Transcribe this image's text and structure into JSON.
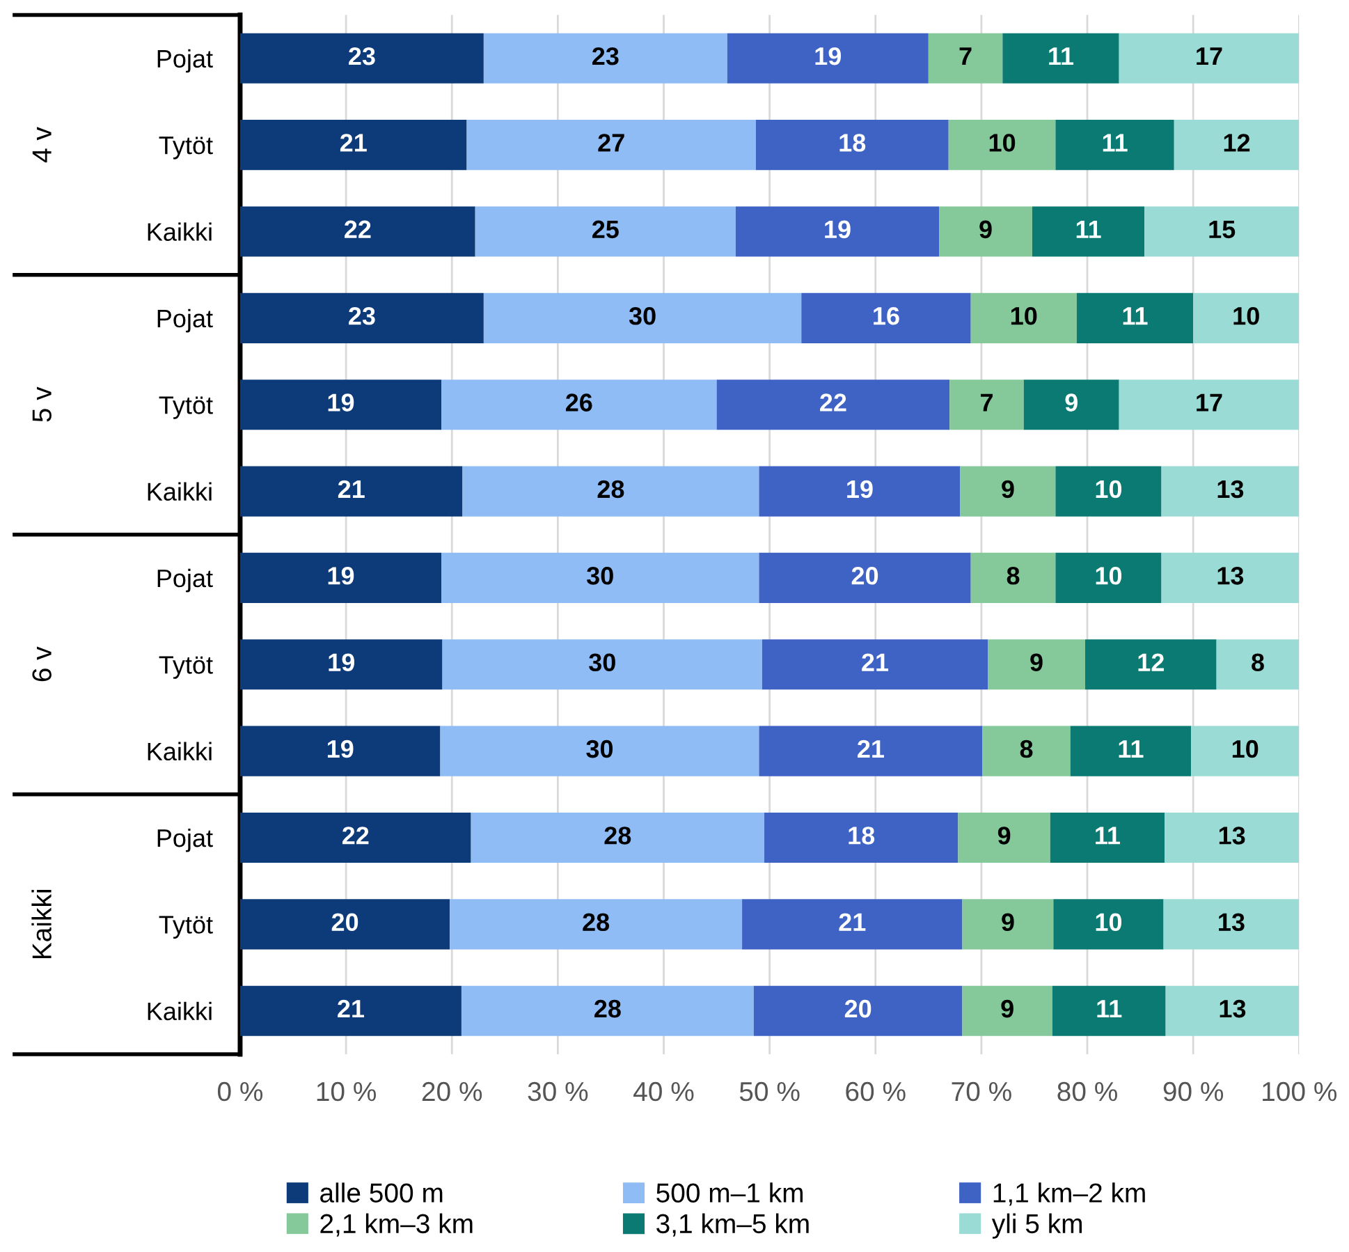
{
  "chart_data": {
    "type": "bar",
    "orientation": "horizontal",
    "stacked": true,
    "grid": "x",
    "legend": "bottom",
    "categories": [
      "Pojat",
      "Tytöt",
      "Kaikki",
      "Pojat",
      "Tytöt",
      "Kaikki",
      "Pojat",
      "Tytöt",
      "Kaikki",
      "Pojat",
      "Tytöt",
      "Kaikki"
    ],
    "annotations": [
      "4 v",
      "5 v",
      "6 v",
      "Kaikki"
    ],
    "xlim": [
      0,
      100
    ],
    "xticks": [
      {
        "value": 0,
        "label": "0 %"
      },
      {
        "value": 10,
        "label": "10 %"
      },
      {
        "value": 20,
        "label": "20 %"
      },
      {
        "value": 30,
        "label": "30 %"
      },
      {
        "value": 40,
        "label": "40 %"
      },
      {
        "value": 50,
        "label": "50 %"
      },
      {
        "value": 60,
        "label": "60 %"
      },
      {
        "value": 70,
        "label": "70 %"
      },
      {
        "value": 80,
        "label": "80 %"
      },
      {
        "value": 90,
        "label": "90 %"
      },
      {
        "value": 100,
        "label": "100 %"
      }
    ],
    "series": [
      {
        "name": "alle 500 m",
        "color": "#0d3a78",
        "values": [
          23,
          21.4,
          22.2,
          23,
          19,
          21,
          19,
          19.1,
          18.9,
          21.8,
          19.8,
          20.9
        ],
        "value_labels": [
          "23",
          "21",
          "22",
          "23",
          "19",
          "21",
          "19",
          "19",
          "19",
          "22",
          "20",
          "21"
        ]
      },
      {
        "name": "500 m–1 km",
        "color": "#8fbcf5",
        "values": [
          23,
          27.3,
          24.6,
          30,
          26,
          28,
          30,
          30.2,
          30.1,
          27.7,
          27.6,
          27.6
        ],
        "value_labels": [
          "23",
          "27",
          "25",
          "30",
          "26",
          "28",
          "30",
          "30",
          "30",
          "28",
          "28",
          "28"
        ]
      },
      {
        "name": "1,1 km–2 km",
        "color": "#3f63c4",
        "values": [
          19,
          18.2,
          19.2,
          16,
          22,
          19,
          20,
          21.3,
          21.1,
          18.3,
          20.8,
          19.7
        ],
        "value_labels": [
          "19",
          "18",
          "19",
          "16",
          "22",
          "19",
          "20",
          "21",
          "21",
          "18",
          "21",
          "20"
        ]
      },
      {
        "name": "2,1 km–3 km",
        "color": "#85c89a",
        "values": [
          7,
          10.1,
          8.8,
          10,
          7,
          9,
          8,
          9.2,
          8.3,
          8.7,
          8.6,
          8.5
        ],
        "value_labels": [
          "7",
          "10",
          "9",
          "10",
          "7",
          "9",
          "8",
          "9",
          "8",
          "9",
          "9",
          "9"
        ]
      },
      {
        "name": "3,1 km–5 km",
        "color": "#0a7a72",
        "values": [
          11,
          11.2,
          10.6,
          11,
          9,
          10,
          10,
          12.4,
          11.4,
          10.8,
          10.4,
          10.7
        ],
        "value_labels": [
          "11",
          "11",
          "11",
          "11",
          "9",
          "10",
          "10",
          "12",
          "11",
          "11",
          "10",
          "11"
        ]
      },
      {
        "name": "yli 5 km",
        "color": "#9adbd6",
        "values": [
          17,
          11.8,
          14.6,
          10,
          17,
          13,
          13,
          7.8,
          10.2,
          12.7,
          12.8,
          12.6
        ],
        "value_labels": [
          "17",
          "12",
          "15",
          "10",
          "17",
          "13",
          "13",
          "8",
          "10",
          "13",
          "13",
          "13"
        ]
      }
    ]
  }
}
